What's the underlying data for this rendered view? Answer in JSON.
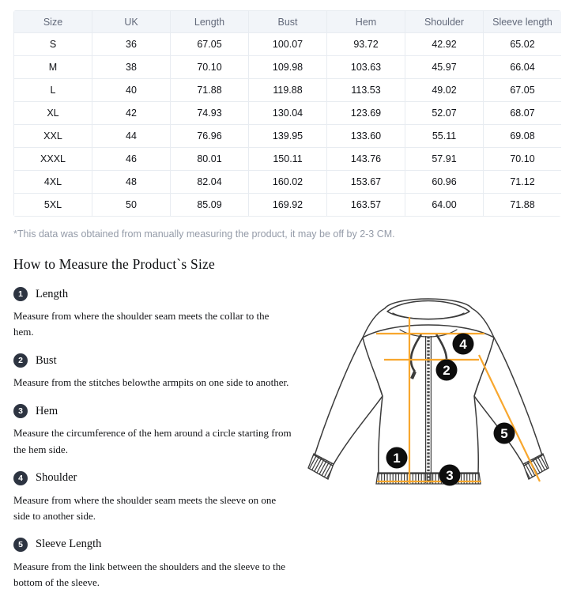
{
  "size_chart": {
    "headers": [
      "Size",
      "UK",
      "Length",
      "Bust",
      "Hem",
      "Shoulder",
      "Sleeve length"
    ],
    "rows": [
      [
        "S",
        "36",
        "67.05",
        "100.07",
        "93.72",
        "42.92",
        "65.02"
      ],
      [
        "M",
        "38",
        "70.10",
        "109.98",
        "103.63",
        "45.97",
        "66.04"
      ],
      [
        "L",
        "40",
        "71.88",
        "119.88",
        "113.53",
        "49.02",
        "67.05"
      ],
      [
        "XL",
        "42",
        "74.93",
        "130.04",
        "123.69",
        "52.07",
        "68.07"
      ],
      [
        "XXL",
        "44",
        "76.96",
        "139.95",
        "133.60",
        "55.11",
        "69.08"
      ],
      [
        "XXXL",
        "46",
        "80.01",
        "150.11",
        "143.76",
        "57.91",
        "70.10"
      ],
      [
        "4XL",
        "48",
        "82.04",
        "160.02",
        "153.67",
        "60.96",
        "71.12"
      ],
      [
        "5XL",
        "50",
        "85.09",
        "169.92",
        "163.57",
        "64.00",
        "71.88"
      ]
    ]
  },
  "note": "*This data was obtained from manually measuring the product, it may be off by 2-3 CM.",
  "measure": {
    "heading": "How to Measure the Product`s Size",
    "steps": [
      {
        "num": "1",
        "label": "Length",
        "desc": "Measure from where the shoulder seam meets the collar to the hem."
      },
      {
        "num": "2",
        "label": "Bust",
        "desc": "Measure from the stitches belowthe armpits on one side to another."
      },
      {
        "num": "3",
        "label": "Hem",
        "desc": "Measure the circumference of the hem around a circle starting from the hem side."
      },
      {
        "num": "4",
        "label": "Shoulder",
        "desc": "Measure from where the shoulder seam meets the sleeve on one side to another side."
      },
      {
        "num": "5",
        "label": "Sleeve Length",
        "desc": "Measure from the link between the shoulders and the sleeve to the bottom of the sleeve."
      }
    ]
  },
  "illustration": {
    "badges": [
      "1",
      "2",
      "3",
      "4",
      "5"
    ]
  },
  "colors": {
    "accent_line": "#F8A72E",
    "badge_fill": "#0d0d0d",
    "step_badge": "#2d3441",
    "table_header_bg": "#f2f5f9",
    "table_border": "#e8ecf1",
    "note_text": "#949ba8"
  }
}
